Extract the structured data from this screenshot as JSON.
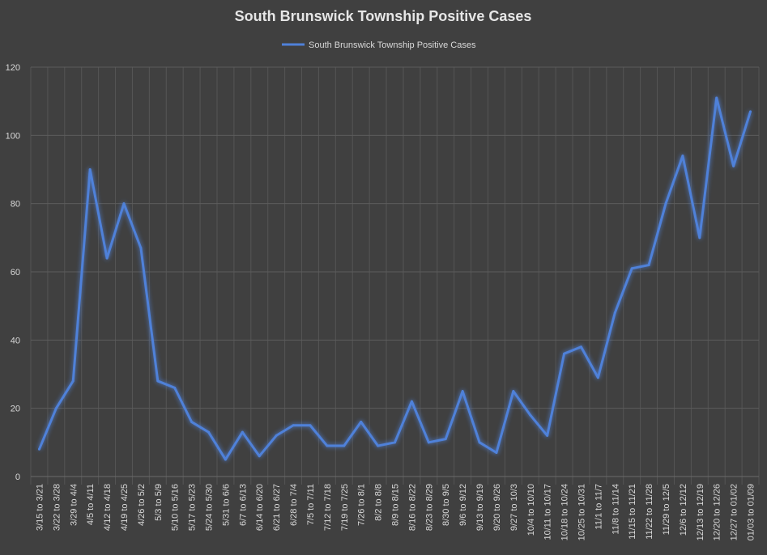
{
  "chart_data": {
    "type": "line",
    "title": "South Brunswick Township Positive Cases",
    "xlabel": "",
    "ylabel": "",
    "ylim": [
      0,
      120
    ],
    "yticks": [
      0,
      20,
      40,
      60,
      80,
      100,
      120
    ],
    "grid": true,
    "legend_position": "top-center",
    "categories": [
      "3/15 to 3/21",
      "3/22 to 3/28",
      "3/29 to 4/4",
      "4/5 to 4/11",
      "4/12 to 4/18",
      "4/19 to 4/25",
      "4/26 to 5/2",
      "5/3 to 5/9",
      "5/10 to 5/16",
      "5/17 to 5/23",
      "5/24 to 5/30",
      "5/31 to 6/6",
      "6/7 to 6/13",
      "6/14 to 6/20",
      "6/21 to 6/27",
      "6/28 to 7/4",
      "7/5 to 7/11",
      "7/12 to 7/18",
      "7/19 to 7/25",
      "7/26 to 8/1",
      "8/2 to 8/8",
      "8/9 to 8/15",
      "8/16 to 8/22",
      "8/23 to 8/29",
      "8/30 to 9/5",
      "9/6 to 9/12",
      "9/13 to 9/19",
      "9/20 to 9/26",
      "9/27 to 10/3",
      "10/4 to 10/10",
      "10/11 to 10/17",
      "10/18 to 10/24",
      "10/25 to 10/31",
      "11/1 to 11/7",
      "11/8 to 11/14",
      "11/15 to 11/21",
      "11/22 to 11/28",
      "11/29 to 12/5",
      "12/6 to 12/12",
      "12/13 to 12/19",
      "12/20 to 12/26",
      "12/27 to 01/02",
      "01/03 to 01/09"
    ],
    "series": [
      {
        "name": "South Brunswick Township Positive Cases",
        "color": "#4f81d9",
        "values": [
          8,
          20,
          28,
          90,
          64,
          80,
          67,
          28,
          26,
          16,
          13,
          5,
          13,
          6,
          12,
          15,
          15,
          9,
          9,
          16,
          9,
          10,
          22,
          10,
          11,
          25,
          10,
          7,
          25,
          18,
          12,
          36,
          38,
          29,
          48,
          61,
          62,
          80,
          94,
          70,
          111,
          91,
          107
        ]
      }
    ]
  }
}
